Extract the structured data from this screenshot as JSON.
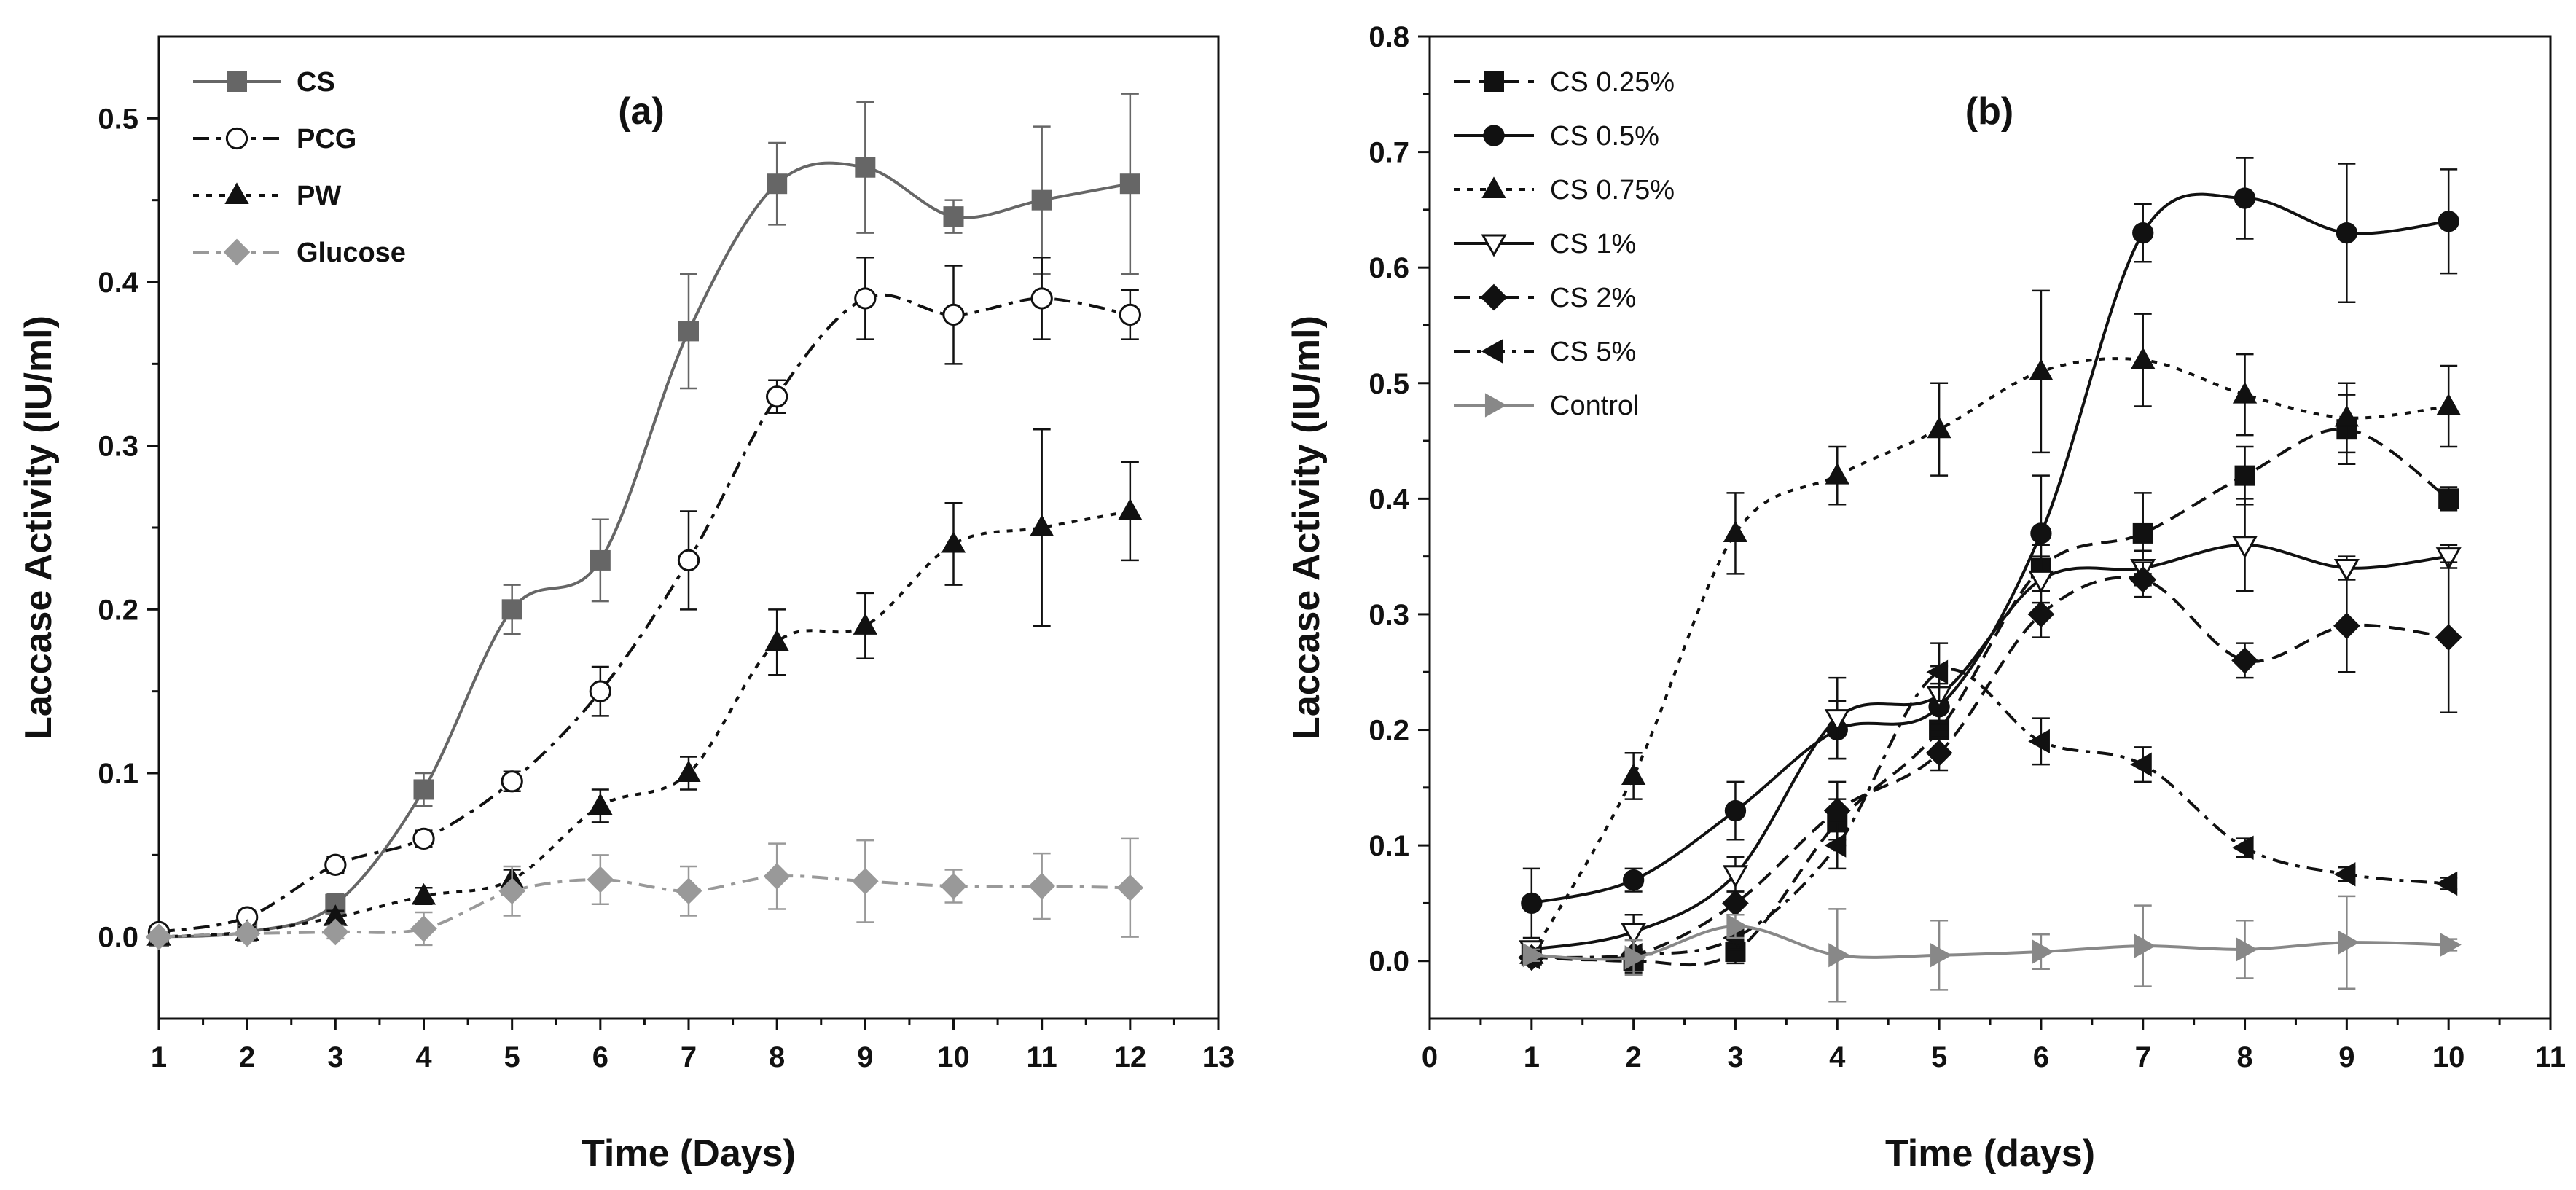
{
  "chart_data": [
    {
      "type": "line",
      "panel_label": "(a)",
      "xlabel": "Time (Days)",
      "ylabel": "Laccase Activity (IU/ml)",
      "xlim": [
        1,
        13
      ],
      "ylim": [
        -0.05,
        0.55
      ],
      "x_ticks": [
        1,
        2,
        3,
        4,
        5,
        6,
        7,
        8,
        9,
        10,
        11,
        12,
        13
      ],
      "y_ticks": [
        0.0,
        0.1,
        0.2,
        0.3,
        0.4,
        0.5
      ],
      "y_tick_labels": [
        "0.0",
        "0.1",
        "0.2",
        "0.3",
        "0.4",
        "0.5"
      ],
      "grid": false,
      "legend_position": "top-left",
      "x": [
        1,
        2,
        3,
        4,
        5,
        6,
        7,
        8,
        9,
        10,
        11,
        12
      ],
      "series": [
        {
          "name": "CS",
          "color": "#666666",
          "marker": "square",
          "dash": "solid",
          "values": [
            0.0,
            0.003,
            0.02,
            0.09,
            0.2,
            0.23,
            0.37,
            0.46,
            0.47,
            0.44,
            0.45,
            0.46
          ],
          "errors": [
            0.004,
            0.004,
            0.006,
            0.01,
            0.015,
            0.025,
            0.035,
            0.025,
            0.04,
            0.01,
            0.045,
            0.055
          ]
        },
        {
          "name": "PCG",
          "color": "#111111",
          "marker": "circle-open",
          "dash": "dashdot",
          "values": [
            0.003,
            0.012,
            0.044,
            0.06,
            0.095,
            0.15,
            0.23,
            0.33,
            0.39,
            0.38,
            0.39,
            0.38
          ],
          "errors": [
            0.003,
            0.004,
            0.005,
            0.005,
            0.006,
            0.015,
            0.03,
            0.01,
            0.025,
            0.03,
            0.025,
            0.015
          ]
        },
        {
          "name": "PW",
          "color": "#111111",
          "marker": "triangle",
          "dash": "dotted",
          "values": [
            0.0,
            0.003,
            0.012,
            0.025,
            0.035,
            0.08,
            0.1,
            0.18,
            0.19,
            0.24,
            0.25,
            0.26
          ],
          "errors": [
            0.003,
            0.003,
            0.004,
            0.005,
            0.006,
            0.01,
            0.01,
            0.02,
            0.02,
            0.025,
            0.06,
            0.03
          ]
        },
        {
          "name": "Glucose",
          "color": "#999999",
          "marker": "diamond",
          "dash": "dashdot",
          "values": [
            0.0,
            0.002,
            0.003,
            0.005,
            0.028,
            0.035,
            0.028,
            0.037,
            0.034,
            0.031,
            0.031,
            0.03
          ],
          "errors": [
            0.003,
            0.003,
            0.004,
            0.01,
            0.015,
            0.015,
            0.015,
            0.02,
            0.025,
            0.01,
            0.02,
            0.03
          ]
        }
      ]
    },
    {
      "type": "line",
      "panel_label": "(b)",
      "xlabel": "Time (days)",
      "ylabel": "Laccase Activity (IU/ml)",
      "xlim": [
        0,
        11
      ],
      "ylim": [
        -0.05,
        0.8
      ],
      "x_ticks": [
        0,
        1,
        2,
        3,
        4,
        5,
        6,
        7,
        8,
        9,
        10,
        11
      ],
      "y_ticks": [
        0.0,
        0.1,
        0.2,
        0.3,
        0.4,
        0.5,
        0.6,
        0.7,
        0.8
      ],
      "y_tick_labels": [
        "0.0",
        "0.1",
        "0.2",
        "0.3",
        "0.4",
        "0.5",
        "0.6",
        "0.7",
        "0.8"
      ],
      "grid": false,
      "legend_position": "top-left",
      "x": [
        1,
        2,
        3,
        4,
        5,
        6,
        7,
        8,
        9,
        10
      ],
      "series": [
        {
          "name": "CS 0.25%",
          "color": "#111111",
          "marker": "square",
          "dash": "dashed",
          "values": [
            0.005,
            0.0,
            0.008,
            0.12,
            0.2,
            0.34,
            0.37,
            0.42,
            0.46,
            0.4
          ],
          "errors": [
            0.005,
            0.01,
            0.01,
            0.02,
            0.02,
            0.02,
            0.035,
            0.025,
            0.03,
            0.01
          ]
        },
        {
          "name": "CS 0.5%",
          "color": "#111111",
          "marker": "circle",
          "dash": "solid",
          "values": [
            0.05,
            0.07,
            0.13,
            0.2,
            0.22,
            0.37,
            0.63,
            0.66,
            0.63,
            0.64
          ],
          "errors": [
            0.03,
            0.01,
            0.025,
            0.025,
            0.02,
            0.05,
            0.025,
            0.035,
            0.06,
            0.045
          ]
        },
        {
          "name": "CS 0.75%",
          "color": "#111111",
          "marker": "triangle",
          "dash": "dotted",
          "values": [
            0.005,
            0.16,
            0.37,
            0.42,
            0.46,
            0.51,
            0.52,
            0.49,
            0.47,
            0.48
          ],
          "errors": [
            0.005,
            0.02,
            0.035,
            0.025,
            0.04,
            0.07,
            0.04,
            0.035,
            0.03,
            0.035
          ]
        },
        {
          "name": "CS 1%",
          "color": "#111111",
          "marker": "triangle-down-open",
          "dash": "solid",
          "values": [
            0.01,
            0.025,
            0.075,
            0.21,
            0.23,
            0.33,
            0.34,
            0.36,
            0.34,
            0.35
          ],
          "errors": [
            0.005,
            0.015,
            0.015,
            0.035,
            0.025,
            0.02,
            0.015,
            0.04,
            0.01,
            0.01
          ]
        },
        {
          "name": "CS 2%",
          "color": "#111111",
          "marker": "diamond",
          "dash": "dashed",
          "values": [
            0.003,
            0.005,
            0.05,
            0.13,
            0.18,
            0.3,
            0.33,
            0.26,
            0.29,
            0.28
          ],
          "errors": [
            0.003,
            0.005,
            0.01,
            0.025,
            0.015,
            0.02,
            0.015,
            0.015,
            0.04,
            0.065
          ]
        },
        {
          "name": "CS 5%",
          "color": "#111111",
          "marker": "triangle-left",
          "dash": "dashdot",
          "values": [
            0.003,
            0.005,
            0.02,
            0.1,
            0.25,
            0.19,
            0.17,
            0.098,
            0.075,
            0.067
          ],
          "errors": [
            0.003,
            0.005,
            0.01,
            0.02,
            0.025,
            0.02,
            0.015,
            0.008,
            0.006,
            0.005
          ]
        },
        {
          "name": "Control",
          "color": "#888888",
          "marker": "triangle-right",
          "dash": "solid",
          "values": [
            0.005,
            0.003,
            0.03,
            0.005,
            0.005,
            0.008,
            0.013,
            0.01,
            0.016,
            0.014
          ],
          "errors": [
            0.005,
            0.015,
            0.01,
            0.04,
            0.03,
            0.015,
            0.035,
            0.025,
            0.04,
            0.005
          ]
        }
      ]
    }
  ]
}
